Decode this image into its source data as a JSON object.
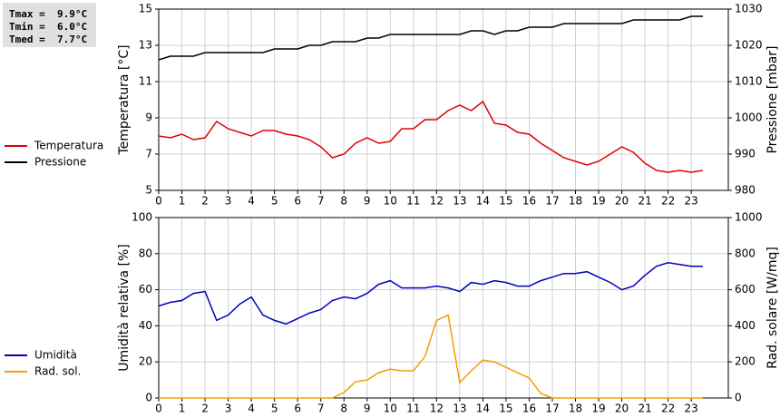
{
  "chart_data": [
    {
      "type": "line",
      "annotations": [
        "Tmax =  9.9°C",
        "Tmin =  6.0°C",
        "Tmed =  7.7°C"
      ],
      "y_label": "Temperatura [°C]",
      "y2_label": "Pressione [mbar]",
      "x": [
        0,
        0.5,
        1,
        1.5,
        2,
        2.5,
        3,
        3.5,
        4,
        4.5,
        5,
        5.5,
        6,
        6.5,
        7,
        7.5,
        8,
        8.5,
        9,
        9.5,
        10,
        10.5,
        11,
        11.5,
        12,
        12.5,
        13,
        13.5,
        14,
        14.5,
        15,
        15.5,
        16,
        16.5,
        17,
        17.5,
        18,
        18.5,
        19,
        19.5,
        20,
        20.5,
        21,
        21.5,
        22,
        22.5,
        23,
        23.5
      ],
      "xlim": [
        0,
        24.6
      ],
      "xticks": [
        0,
        1,
        2,
        3,
        4,
        5,
        6,
        7,
        8,
        9,
        10,
        11,
        12,
        13,
        14,
        15,
        16,
        17,
        18,
        19,
        20,
        21,
        22,
        23
      ],
      "ylim": [
        5,
        15
      ],
      "yticks": [
        5,
        7,
        9,
        11,
        13,
        15
      ],
      "y2lim": [
        980,
        1030
      ],
      "y2ticks": [
        980,
        990,
        1000,
        1010,
        1020,
        1030
      ],
      "grid": true,
      "series": [
        {
          "name": "Temperatura",
          "color": "#e00000",
          "values": [
            8.0,
            7.9,
            8.1,
            7.8,
            7.9,
            8.8,
            8.4,
            8.2,
            8.0,
            8.3,
            8.3,
            8.1,
            8.0,
            7.8,
            7.4,
            6.8,
            7.0,
            7.6,
            7.9,
            7.6,
            7.7,
            8.4,
            8.4,
            8.9,
            8.9,
            9.4,
            9.7,
            9.4,
            9.9,
            8.7,
            8.6,
            8.2,
            8.1,
            7.6,
            7.2,
            6.8,
            6.6,
            6.4,
            6.6,
            7.0,
            7.4,
            7.1,
            6.5,
            6.1,
            6.0,
            6.1,
            6.0,
            6.1
          ]
        },
        {
          "name": "Pressione",
          "color": "#000000",
          "axis": "y2",
          "values": [
            1016,
            1017,
            1017,
            1017,
            1018,
            1018,
            1018,
            1018,
            1018,
            1018,
            1019,
            1019,
            1019,
            1020,
            1020,
            1021,
            1021,
            1021,
            1022,
            1022,
            1023,
            1023,
            1023,
            1023,
            1023,
            1023,
            1023,
            1024,
            1024,
            1023,
            1024,
            1024,
            1025,
            1025,
            1025,
            1026,
            1026,
            1026,
            1026,
            1026,
            1026,
            1027,
            1027,
            1027,
            1027,
            1027,
            1028,
            1028
          ]
        }
      ]
    },
    {
      "type": "line",
      "y_label": "Umidità relativa [%]",
      "y2_label": "Rad. solare [W/mq]",
      "x": [
        0,
        0.5,
        1,
        1.5,
        2,
        2.5,
        3,
        3.5,
        4,
        4.5,
        5,
        5.5,
        6,
        6.5,
        7,
        7.5,
        8,
        8.5,
        9,
        9.5,
        10,
        10.5,
        11,
        11.5,
        12,
        12.5,
        13,
        13.5,
        14,
        14.5,
        15,
        15.5,
        16,
        16.5,
        17,
        17.5,
        18,
        18.5,
        19,
        19.5,
        20,
        20.5,
        21,
        21.5,
        22,
        22.5,
        23,
        23.5
      ],
      "xlim": [
        0,
        24.6
      ],
      "xticks": [
        0,
        1,
        2,
        3,
        4,
        5,
        6,
        7,
        8,
        9,
        10,
        11,
        12,
        13,
        14,
        15,
        16,
        17,
        18,
        19,
        20,
        21,
        22,
        23
      ],
      "ylim": [
        0,
        100
      ],
      "yticks": [
        0,
        20,
        40,
        60,
        80,
        100
      ],
      "y2lim": [
        0,
        1000
      ],
      "y2ticks": [
        0,
        200,
        400,
        600,
        800,
        1000
      ],
      "grid": true,
      "series": [
        {
          "name": "Umidità",
          "color": "#0000c0",
          "values": [
            51,
            53,
            54,
            58,
            59,
            43,
            46,
            52,
            56,
            46,
            43,
            41,
            44,
            47,
            49,
            54,
            56,
            55,
            58,
            63,
            65,
            61,
            61,
            61,
            62,
            61,
            59,
            64,
            63,
            65,
            64,
            62,
            62,
            65,
            67,
            69,
            69,
            70,
            67,
            64,
            60,
            62,
            68,
            73,
            75,
            74,
            73,
            73
          ]
        },
        {
          "name": "Rad. sol.",
          "color": "#f0a000",
          "axis": "y2",
          "values": [
            0,
            0,
            0,
            0,
            0,
            0,
            0,
            0,
            0,
            0,
            0,
            0,
            0,
            0,
            0,
            0,
            30,
            90,
            100,
            140,
            160,
            150,
            150,
            230,
            430,
            460,
            85,
            150,
            210,
            200,
            170,
            140,
            110,
            25,
            0,
            0,
            0,
            0,
            0,
            0,
            0,
            0,
            0,
            0,
            0,
            0,
            0,
            0
          ]
        }
      ]
    }
  ]
}
